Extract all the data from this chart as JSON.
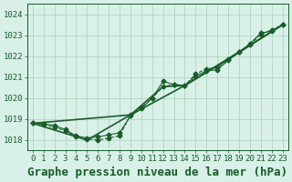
{
  "background_color": "#d8f0e8",
  "plot_bg_color": "#d8f0e8",
  "grid_color": "#aacfbb",
  "line_color": "#1a5c2a",
  "xlabel": "Graphe pression niveau de la mer (hPa)",
  "ylim": [
    1017.5,
    1024.5
  ],
  "xlim": [
    -0.5,
    23.5
  ],
  "yticks": [
    1018,
    1019,
    1020,
    1021,
    1022,
    1023,
    1024
  ],
  "xticks": [
    0,
    1,
    2,
    3,
    4,
    5,
    6,
    7,
    8,
    9,
    10,
    11,
    12,
    13,
    14,
    15,
    16,
    17,
    18,
    19,
    20,
    21,
    22,
    23
  ],
  "series": [
    {
      "x": [
        0,
        1,
        2,
        3,
        4,
        5,
        6,
        7,
        8,
        9,
        10,
        11,
        12,
        13,
        14,
        15,
        16,
        17,
        18,
        19,
        20,
        21,
        22,
        23
      ],
      "y": [
        1018.8,
        1018.75,
        1018.6,
        1018.45,
        1018.15,
        1018.05,
        1018.0,
        1018.1,
        1018.2,
        1019.2,
        1019.55,
        1020.0,
        1020.55,
        1020.65,
        1020.6,
        1021.15,
        1021.4,
        1021.45,
        1021.85,
        1022.2,
        1022.55,
        1023.05,
        1023.25,
        1023.5
      ],
      "marker": "D",
      "markersize": 2.5,
      "linewidth": 0.8,
      "linestyle": "--"
    },
    {
      "x": [
        0,
        5,
        9,
        14,
        18,
        23
      ],
      "y": [
        1018.8,
        1018.0,
        1019.2,
        1020.6,
        1021.85,
        1023.5
      ],
      "marker": null,
      "markersize": 0,
      "linewidth": 1.2,
      "linestyle": "-"
    },
    {
      "x": [
        0,
        9,
        12,
        14,
        23
      ],
      "y": [
        1018.8,
        1019.2,
        1020.55,
        1020.6,
        1023.5
      ],
      "marker": null,
      "markersize": 0,
      "linewidth": 1.2,
      "linestyle": "-"
    },
    {
      "x": [
        0,
        1,
        2,
        3,
        4,
        5,
        6,
        7,
        8,
        9,
        10,
        11,
        12,
        13,
        14,
        15,
        16,
        17,
        18,
        19,
        20,
        21,
        22,
        23
      ],
      "y": [
        1018.8,
        1018.78,
        1018.7,
        1018.5,
        1018.2,
        1018.1,
        1018.15,
        1018.25,
        1018.35,
        1019.15,
        1019.5,
        1020.0,
        1020.8,
        1020.65,
        1020.6,
        1021.05,
        1021.3,
        1021.35,
        1021.8,
        1022.2,
        1022.6,
        1023.1,
        1023.2,
        1023.5
      ],
      "marker": "D",
      "markersize": 2.5,
      "linewidth": 0.8,
      "linestyle": "-"
    }
  ],
  "title_fontsize": 9,
  "tick_fontsize": 6.5,
  "title_color": "#1a5c2a",
  "tick_color": "#1a5c2a"
}
